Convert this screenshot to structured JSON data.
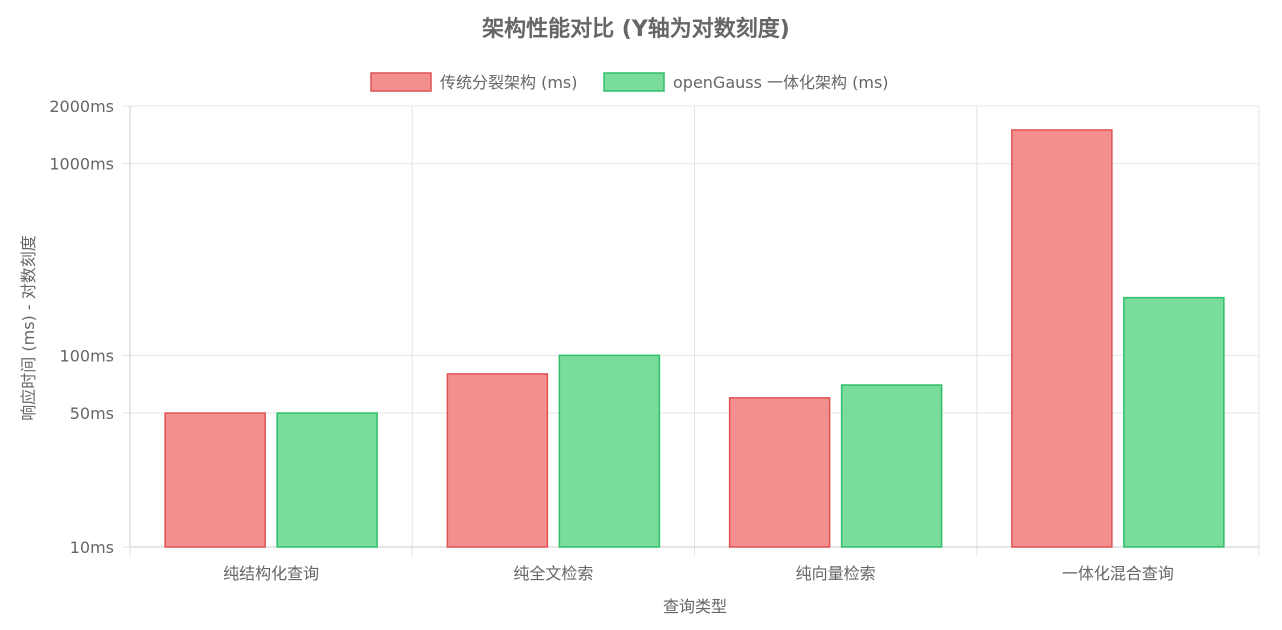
{
  "chart_data": {
    "type": "bar",
    "title": "架构性能对比 (Y轴为对数刻度)",
    "xlabel": "查询类型",
    "ylabel": "响应时间 (ms) - 对数刻度",
    "yscale": "log",
    "ylim": [
      10,
      2000
    ],
    "yticks": [
      10,
      50,
      100,
      1000,
      2000
    ],
    "ytick_labels": [
      "10ms",
      "50ms",
      "100ms",
      "1000ms",
      "2000ms"
    ],
    "grid": true,
    "legend_position": "top-center",
    "categories": [
      "纯结构化查询",
      "纯全文检索",
      "纯向量检索",
      "一体化混合查询"
    ],
    "series": [
      {
        "name": "传统分裂架构 (ms)",
        "values": [
          50,
          80,
          60,
          1500
        ],
        "fill": "#f38f8f",
        "stroke": "#e05252"
      },
      {
        "name": "openGauss 一体化架构 (ms)",
        "values": [
          50,
          100,
          70,
          200
        ],
        "fill": "#79db9c",
        "stroke": "#2fbf68"
      }
    ]
  }
}
